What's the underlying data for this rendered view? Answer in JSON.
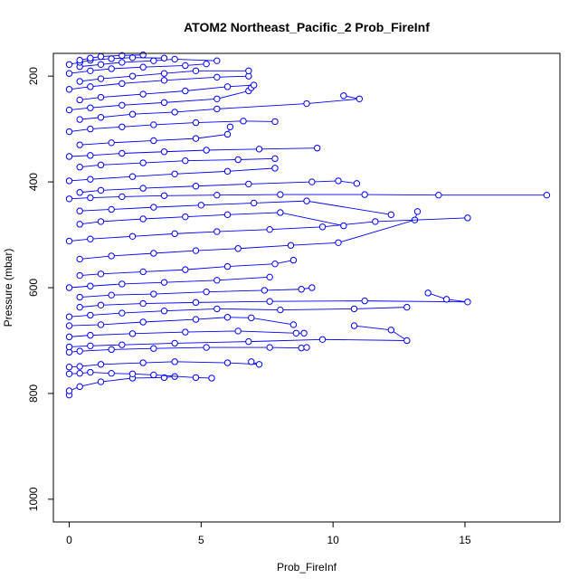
{
  "chart_data": {
    "type": "line",
    "title": "ATOM2 Northeast_Pacific_2 Prob_FireInf",
    "xlabel": "Prob_FireInf",
    "ylabel": "Pressure (mbar)",
    "xlim": [
      -0.6,
      18.6
    ],
    "ylim": [
      1043,
      157
    ],
    "y_reversed": true,
    "x_ticks": [
      0,
      5,
      10,
      15
    ],
    "y_ticks": [
      200,
      400,
      600,
      800,
      1000
    ],
    "grid": false,
    "series_color": "#0000ff",
    "marker": "open-circle",
    "series": [
      {
        "x": [
          0.0,
          0.0,
          0.4,
          1.2,
          2.4,
          3.6,
          4.0
        ],
        "y": [
          803,
          795,
          787,
          778,
          771,
          770,
          768
        ]
      },
      {
        "x": [
          0.0,
          0.4,
          0.8,
          1.6,
          2.4,
          3.2,
          4.8,
          5.4
        ],
        "y": [
          763,
          762,
          760,
          762,
          763,
          765,
          770,
          771
        ]
      },
      {
        "x": [
          0.0,
          0.4,
          1.2,
          2.8,
          4.0,
          6.0,
          7.2,
          6.9
        ],
        "y": [
          750,
          749,
          745,
          742,
          740,
          742,
          745,
          740
        ]
      },
      {
        "x": [
          0.0,
          0.4,
          1.6,
          3.2,
          5.2,
          7.6,
          8.8,
          9.0
        ],
        "y": [
          722,
          720,
          717,
          715,
          713,
          713,
          714,
          713
        ]
      },
      {
        "x": [
          0.0,
          0.8,
          2.0,
          4.0,
          6.8,
          9.6,
          12.8,
          12.2,
          10.8
        ],
        "y": [
          712,
          710,
          708,
          705,
          702,
          698,
          700,
          680,
          672
        ]
      },
      {
        "x": [
          0.0,
          0.8,
          2.4,
          4.4,
          6.4,
          8.6,
          8.9
        ],
        "y": [
          693,
          690,
          687,
          684,
          682,
          686,
          686
        ]
      },
      {
        "x": [
          0.0,
          1.2,
          2.8,
          4.8,
          6.0,
          6.9,
          8.5
        ],
        "y": [
          672,
          670,
          665,
          660,
          656,
          657,
          670
        ]
      },
      {
        "x": [
          0.0,
          0.8,
          2.0,
          3.6,
          5.6,
          8.0,
          10.8,
          12.8
        ],
        "y": [
          655,
          652,
          648,
          644,
          640,
          642,
          640,
          637
        ]
      },
      {
        "x": [
          0.4,
          1.2,
          2.8,
          4.8,
          7.6,
          11.2,
          15.1,
          14.3,
          13.6
        ],
        "y": [
          637,
          633,
          630,
          628,
          626,
          625,
          627,
          622,
          610
        ]
      },
      {
        "x": [
          0.4,
          1.6,
          3.2,
          5.2,
          7.4,
          8.8,
          9.2
        ],
        "y": [
          618,
          614,
          612,
          608,
          605,
          603,
          600
        ]
      },
      {
        "x": [
          0.0,
          0.8,
          2.0,
          3.6,
          5.6,
          7.6
        ],
        "y": [
          600,
          597,
          593,
          590,
          586,
          580
        ]
      },
      {
        "x": [
          0.4,
          1.2,
          2.8,
          4.4,
          6.0,
          7.8,
          8.5
        ],
        "y": [
          577,
          574,
          570,
          566,
          560,
          555,
          548
        ]
      },
      {
        "x": [
          0.4,
          1.6,
          3.2,
          4.8,
          6.4,
          8.4,
          10.2,
          13.1,
          13.2
        ],
        "y": [
          546,
          540,
          535,
          530,
          526,
          520,
          515,
          472,
          456
        ]
      },
      {
        "x": [
          0.0,
          0.8,
          2.4,
          4.0,
          5.6,
          7.6,
          9.6,
          11.6,
          15.1
        ],
        "y": [
          512,
          508,
          503,
          498,
          494,
          490,
          485,
          475,
          468
        ]
      },
      {
        "x": [
          0.4,
          1.2,
          2.8,
          4.4,
          6.0,
          8.0,
          10.4
        ],
        "y": [
          480,
          475,
          470,
          466,
          462,
          458,
          483
        ]
      },
      {
        "x": [
          0.4,
          1.6,
          3.2,
          5.0,
          7.0,
          9.0,
          12.2
        ],
        "y": [
          455,
          452,
          448,
          444,
          440,
          436,
          462
        ]
      },
      {
        "x": [
          0.0,
          0.8,
          2.0,
          3.6,
          5.6,
          8.0,
          11.2,
          14.0,
          18.1
        ],
        "y": [
          432,
          430,
          428,
          426,
          425,
          424,
          424,
          425,
          425
        ]
      },
      {
        "x": [
          0.4,
          1.2,
          2.8,
          4.8,
          6.8,
          9.2,
          10.2,
          10.9
        ],
        "y": [
          420,
          416,
          412,
          408,
          404,
          400,
          398,
          403
        ]
      },
      {
        "x": [
          0.0,
          0.8,
          2.4,
          4.0,
          6.0,
          7.8
        ],
        "y": [
          398,
          395,
          390,
          385,
          380,
          374
        ]
      },
      {
        "x": [
          0.4,
          1.2,
          2.8,
          4.4,
          6.4,
          7.8
        ],
        "y": [
          372,
          368,
          364,
          360,
          358,
          356
        ]
      },
      {
        "x": [
          0.0,
          0.8,
          2.0,
          3.6,
          5.2,
          7.2,
          9.4
        ],
        "y": [
          352,
          350,
          346,
          343,
          340,
          338,
          336
        ]
      },
      {
        "x": [
          0.4,
          1.6,
          3.2,
          4.8,
          6.0,
          6.1
        ],
        "y": [
          330,
          326,
          322,
          318,
          310,
          296
        ]
      },
      {
        "x": [
          0.0,
          0.8,
          2.0,
          3.2,
          4.8,
          6.6,
          7.8
        ],
        "y": [
          305,
          300,
          296,
          292,
          288,
          285,
          286
        ]
      },
      {
        "x": [
          0.4,
          1.2,
          2.4,
          4.0,
          5.6,
          9.0,
          11.0,
          10.4
        ],
        "y": [
          282,
          278,
          272,
          268,
          262,
          252,
          243,
          237
        ]
      },
      {
        "x": [
          0.0,
          0.8,
          2.0,
          3.6,
          5.6,
          6.8,
          6.9
        ],
        "y": [
          264,
          260,
          255,
          250,
          243,
          228,
          222
        ]
      },
      {
        "x": [
          0.4,
          1.2,
          2.8,
          4.4,
          6.0,
          7.0
        ],
        "y": [
          245,
          240,
          234,
          228,
          220,
          217
        ]
      },
      {
        "x": [
          0.0,
          0.8,
          2.0,
          3.6,
          5.6,
          6.8
        ],
        "y": [
          225,
          220,
          214,
          208,
          202,
          200
        ]
      },
      {
        "x": [
          0.4,
          1.2,
          2.4,
          3.6,
          4.8,
          6.8
        ],
        "y": [
          210,
          205,
          200,
          195,
          190,
          190
        ]
      },
      {
        "x": [
          0.0,
          0.8,
          1.6,
          2.8,
          4.4,
          5.2
        ],
        "y": [
          195,
          190,
          186,
          183,
          180,
          177
        ]
      },
      {
        "x": [
          0.4,
          1.2,
          2.0,
          3.2,
          4.0,
          5.6
        ],
        "y": [
          182,
          178,
          174,
          171,
          168,
          171
        ]
      },
      {
        "x": [
          0.0,
          0.4,
          0.8,
          1.6,
          2.4,
          3.6
        ],
        "y": [
          178,
          174,
          170,
          167,
          165,
          166
        ]
      },
      {
        "x": [
          0.4,
          0.8,
          1.2,
          2.0,
          2.8
        ],
        "y": [
          170,
          166,
          163,
          161,
          160
        ]
      }
    ]
  }
}
